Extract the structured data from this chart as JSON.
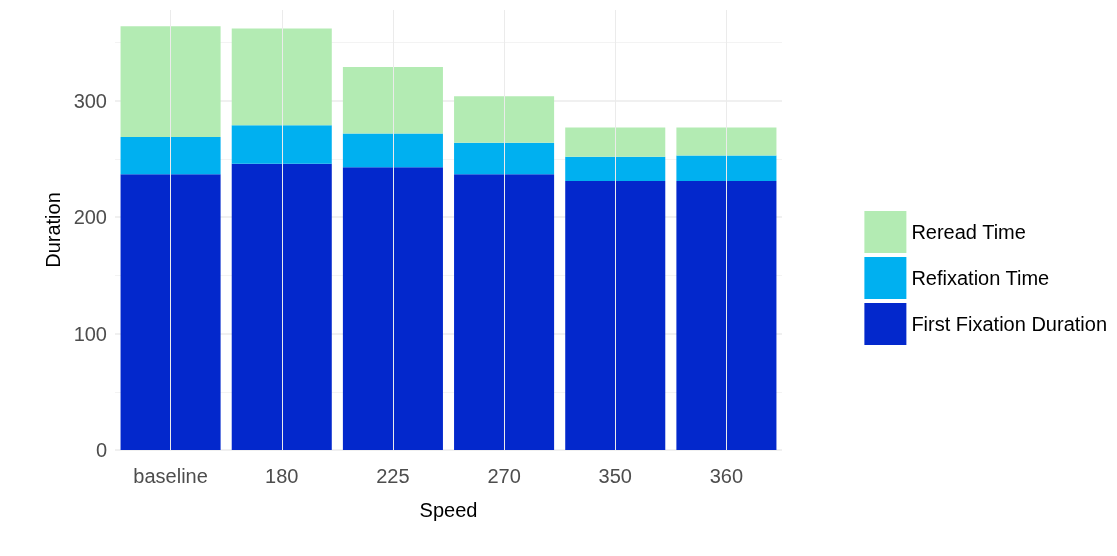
{
  "chart_data": {
    "type": "bar",
    "xlabel": "Speed",
    "ylabel": "Duration",
    "categories": [
      "baseline",
      "180",
      "225",
      "270",
      "350",
      "360"
    ],
    "stacked": true,
    "series": [
      {
        "name": "First Fixation Duration",
        "color": "#0328cc",
        "values": [
          237,
          246,
          243,
          237,
          231,
          231
        ]
      },
      {
        "name": "Refixation Time",
        "color": "#00b0f0",
        "values": [
          32,
          33,
          29,
          27,
          21,
          22
        ]
      },
      {
        "name": "Reread Time",
        "color": "#b3ebb3",
        "values": [
          95,
          83,
          57,
          40,
          25,
          24
        ]
      }
    ],
    "ylim": [
      0,
      378
    ],
    "yticks": [
      0,
      100,
      200,
      300
    ],
    "grid": true,
    "legend": "right"
  }
}
